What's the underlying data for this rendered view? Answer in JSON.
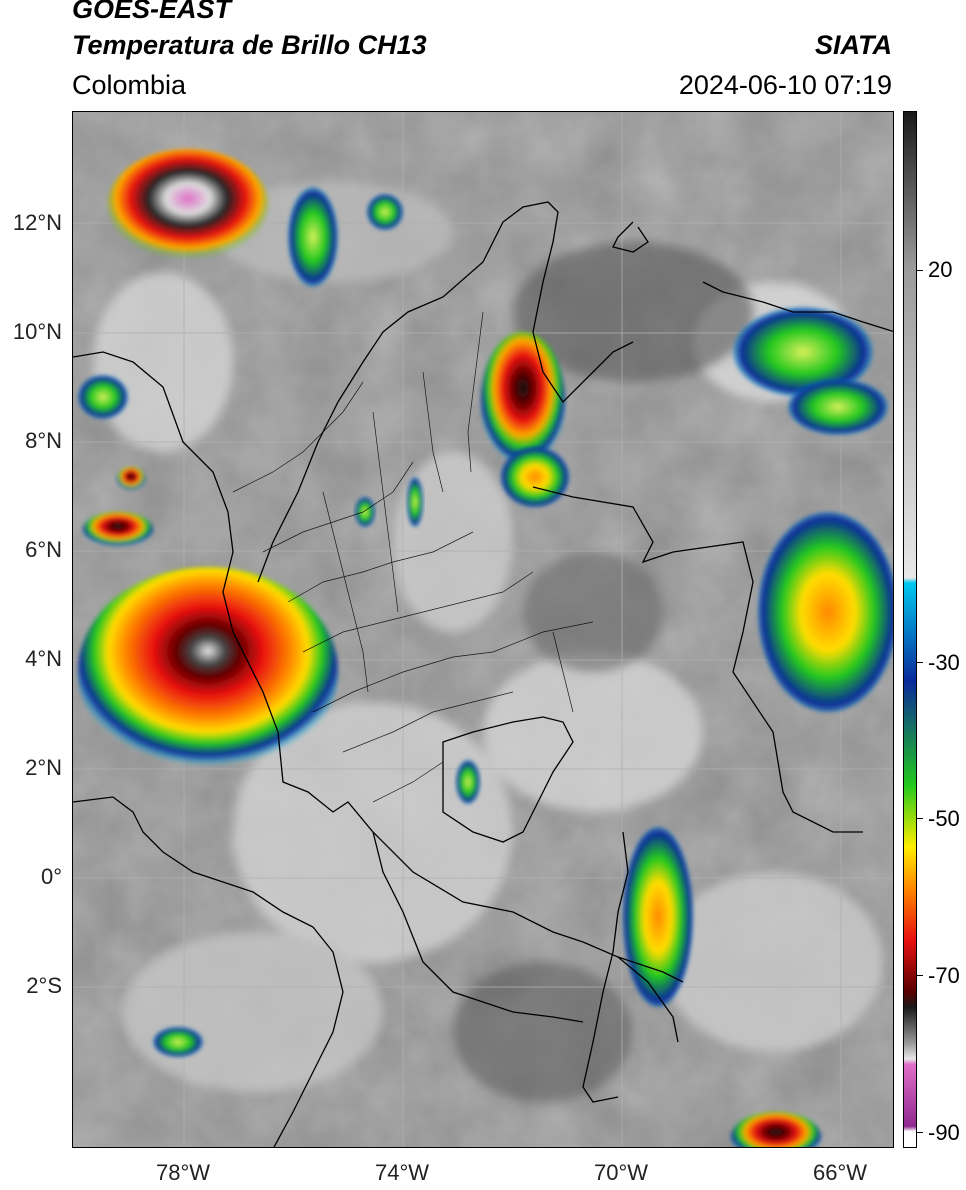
{
  "header": {
    "satellite": "GOES-EAST",
    "product": "Temperatura de Brillo CH13",
    "agency": "SIATA",
    "region": "Colombia",
    "datetime": "2024-06-10 07:19"
  },
  "axes": {
    "lat_labels": [
      "12°N",
      "10°N",
      "8°N",
      "6°N",
      "4°N",
      "2°N",
      "0°",
      "2°S"
    ],
    "lon_labels": [
      "78°W",
      "74°W",
      "70°W",
      "66°W"
    ]
  },
  "colorbar": {
    "ticks": [
      "20",
      "-30",
      "-50",
      "-70",
      "-90"
    ],
    "colors": {
      "warm_top": "#1a1a1a",
      "gray_mid": "#9a9a9a",
      "light": "#e8e8e8",
      "cyan": "#00c8f0",
      "blue": "#0a2a9a",
      "green": "#22c81e",
      "yellow": "#ffee00",
      "orange": "#ff8800",
      "red": "#e81010",
      "darkred": "#5a0000",
      "pink": "#e070c8",
      "purple": "#902890"
    }
  }
}
